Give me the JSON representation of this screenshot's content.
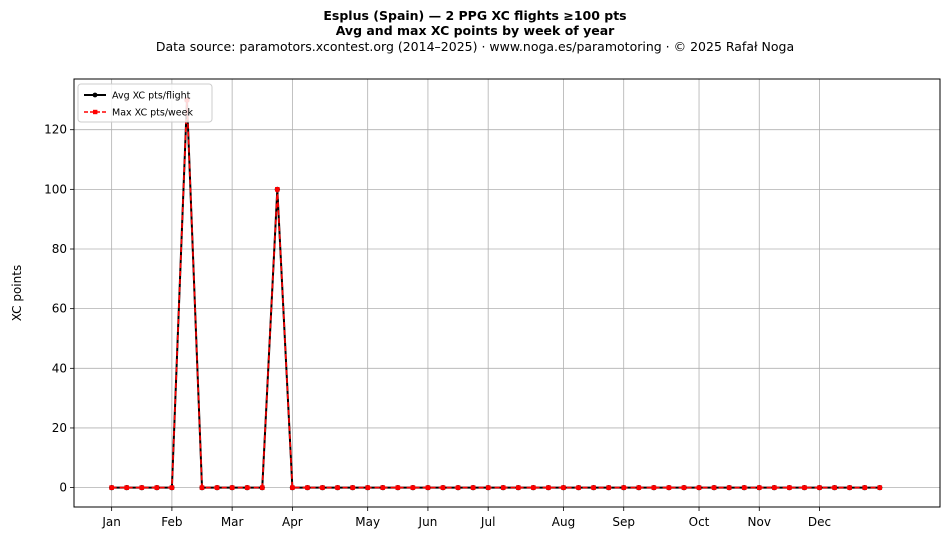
{
  "chart_data": {
    "type": "line",
    "title": "Esplus (Spain)  —  2 PPG XC flights ≥100 pts",
    "subtitle": "Avg and max XC points by week of year",
    "source_line": "Data source: paramotors.xcontest.org (2014–2025)  ·  www.noga.es/paramotoring  ·  © 2025 Rafał Noga",
    "xlabel": "",
    "ylabel": "XC points",
    "x": [
      1,
      2,
      3,
      4,
      5,
      6,
      7,
      8,
      9,
      10,
      11,
      12,
      13,
      14,
      15,
      16,
      17,
      18,
      19,
      20,
      21,
      22,
      23,
      24,
      25,
      26,
      27,
      28,
      29,
      30,
      31,
      32,
      33,
      34,
      35,
      36,
      37,
      38,
      39,
      40,
      41,
      42,
      43,
      44,
      45,
      46,
      47,
      48,
      49,
      50,
      51,
      52
    ],
    "xlim": [
      -1.5,
      56
    ],
    "ylim": [
      -6.5,
      137
    ],
    "month_ticks": [
      {
        "x": 1,
        "label": "Jan"
      },
      {
        "x": 5,
        "label": "Feb"
      },
      {
        "x": 9,
        "label": "Mar"
      },
      {
        "x": 13,
        "label": "Apr"
      },
      {
        "x": 18,
        "label": "May"
      },
      {
        "x": 22,
        "label": "Jun"
      },
      {
        "x": 26,
        "label": "Jul"
      },
      {
        "x": 31,
        "label": "Aug"
      },
      {
        "x": 35,
        "label": "Sep"
      },
      {
        "x": 40,
        "label": "Oct"
      },
      {
        "x": 44,
        "label": "Nov"
      },
      {
        "x": 48,
        "label": "Dec"
      }
    ],
    "y_ticks": [
      0,
      20,
      40,
      60,
      80,
      100,
      120
    ],
    "grid": true,
    "legend_position": "top-left",
    "series": [
      {
        "name": "Avg XC pts/flight",
        "color": "#000000",
        "style": "solid",
        "marker": "circle",
        "values": [
          0,
          0,
          0,
          0,
          0,
          130,
          0,
          0,
          0,
          0,
          0,
          100,
          0,
          0,
          0,
          0,
          0,
          0,
          0,
          0,
          0,
          0,
          0,
          0,
          0,
          0,
          0,
          0,
          0,
          0,
          0,
          0,
          0,
          0,
          0,
          0,
          0,
          0,
          0,
          0,
          0,
          0,
          0,
          0,
          0,
          0,
          0,
          0,
          0,
          0,
          0,
          0
        ]
      },
      {
        "name": "Max XC pts/week",
        "color": "#ff0000",
        "style": "dashed",
        "marker": "square",
        "values": [
          0,
          0,
          0,
          0,
          0,
          130,
          0,
          0,
          0,
          0,
          0,
          100,
          0,
          0,
          0,
          0,
          0,
          0,
          0,
          0,
          0,
          0,
          0,
          0,
          0,
          0,
          0,
          0,
          0,
          0,
          0,
          0,
          0,
          0,
          0,
          0,
          0,
          0,
          0,
          0,
          0,
          0,
          0,
          0,
          0,
          0,
          0,
          0,
          0,
          0,
          0,
          0
        ]
      }
    ]
  }
}
